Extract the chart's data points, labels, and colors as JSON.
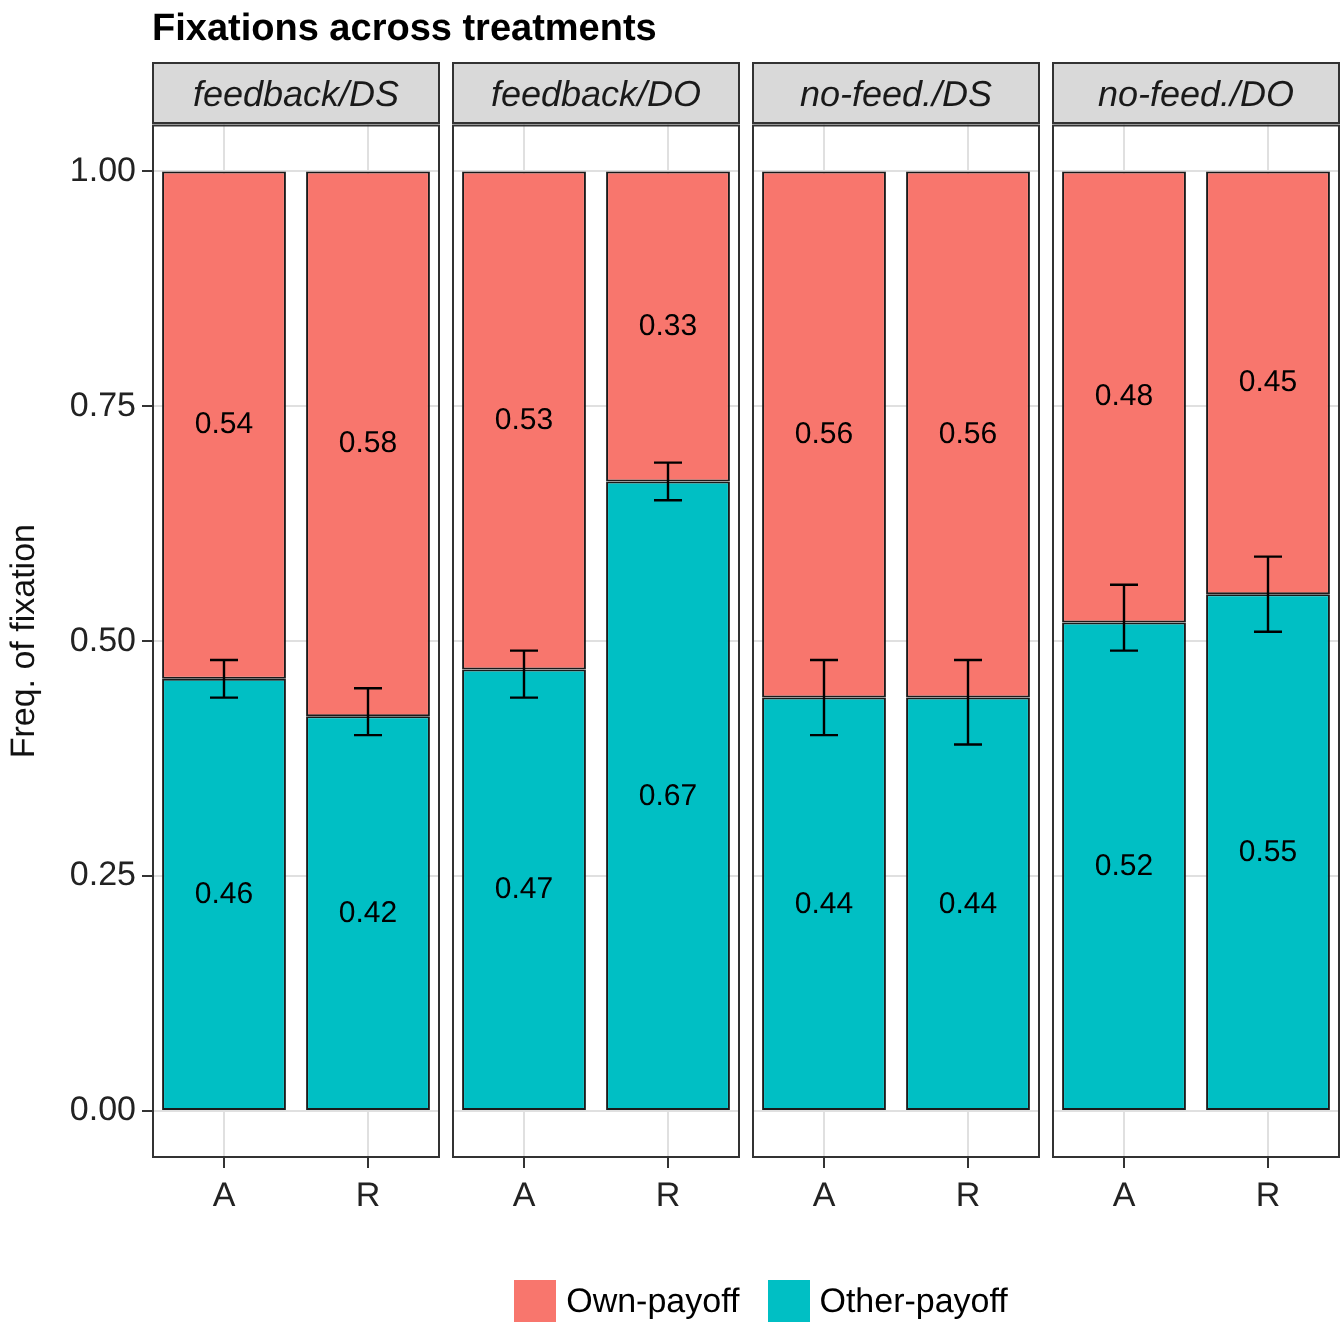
{
  "chart_data": [
    {
      "type": "bar",
      "title": "Fixations across treatments",
      "subtitle": "feedback/DS",
      "ylabel": "Freq. of fixation",
      "categories": [
        "A",
        "R"
      ],
      "stacked": true,
      "data_labels": true,
      "grid": true,
      "legend": "bottom",
      "ylim": [
        -0.05,
        1.05
      ],
      "yticks": [
        {
          "value": 0,
          "label": "0.00"
        },
        {
          "value": 0.25,
          "label": "0.25"
        },
        {
          "value": 0.5,
          "label": "0.50"
        },
        {
          "value": 0.75,
          "label": "0.75"
        },
        {
          "value": 1,
          "label": "1.00"
        }
      ],
      "series": [
        {
          "name": "Other-payoff",
          "color": "#00bfc4",
          "values": [
            0.46,
            0.42
          ],
          "errors": [
            [
              0.44,
              0.48
            ],
            [
              0.4,
              0.45
            ]
          ]
        },
        {
          "name": "Own-payoff",
          "color": "#f8766d",
          "values": [
            0.54,
            0.58
          ]
        }
      ]
    },
    {
      "type": "bar",
      "title": "feedback/DO",
      "categories": [
        "A",
        "R"
      ],
      "stacked": true,
      "data_labels": true,
      "grid": true,
      "tick_labels": "x",
      "ylim": [
        -0.05,
        1.05
      ],
      "yticks": [
        0,
        0.25,
        0.5,
        0.75,
        1
      ],
      "series": [
        {
          "color": "#00bfc4",
          "values": [
            0.47,
            0.67
          ],
          "errors": [
            [
              0.44,
              0.49
            ],
            [
              0.65,
              0.69
            ]
          ]
        },
        {
          "color": "#f8766d",
          "values": [
            0.53,
            0.33
          ]
        }
      ]
    },
    {
      "type": "bar",
      "title": "no-feed./DS",
      "categories": [
        "A",
        "R"
      ],
      "stacked": true,
      "data_labels": true,
      "grid": true,
      "tick_labels": "x",
      "ylim": [
        -0.05,
        1.05
      ],
      "yticks": [
        0,
        0.25,
        0.5,
        0.75,
        1
      ],
      "series": [
        {
          "color": "#00bfc4",
          "values": [
            0.44,
            0.44
          ],
          "errors": [
            [
              0.4,
              0.48
            ],
            [
              0.39,
              0.48
            ]
          ]
        },
        {
          "color": "#f8766d",
          "values": [
            0.56,
            0.56
          ]
        }
      ]
    },
    {
      "type": "bar",
      "title": "no-feed./DO",
      "categories": [
        "A",
        "R"
      ],
      "stacked": true,
      "data_labels": true,
      "grid": true,
      "tick_labels": "x",
      "ylim": [
        -0.05,
        1.05
      ],
      "yticks": [
        0,
        0.25,
        0.5,
        0.75,
        1
      ],
      "series": [
        {
          "color": "#00bfc4",
          "values": [
            0.52,
            0.55
          ],
          "errors": [
            [
              0.49,
              0.56
            ],
            [
              0.51,
              0.59
            ]
          ]
        },
        {
          "color": "#f8766d",
          "values": [
            0.48,
            0.45
          ]
        }
      ]
    }
  ]
}
